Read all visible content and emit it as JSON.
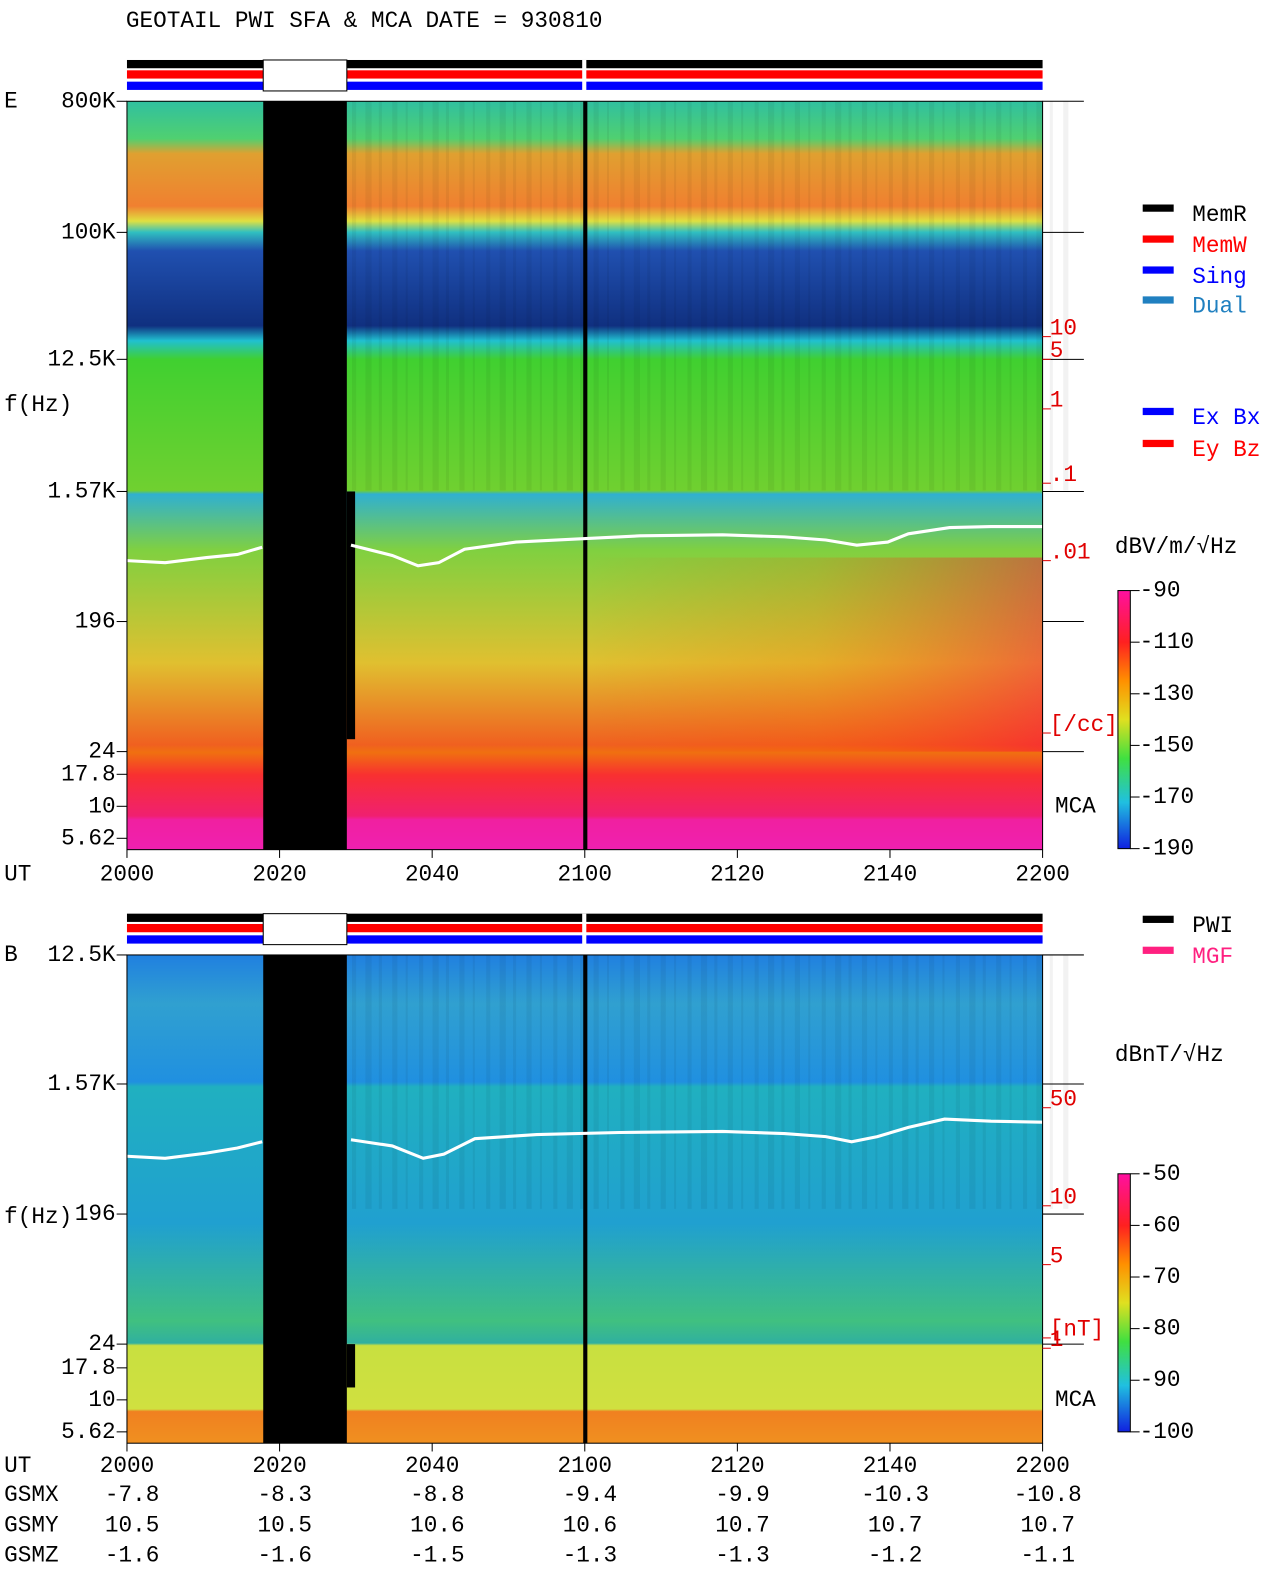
{
  "title": "GEOTAIL  PWI SFA & MCA   DATE = 930810",
  "panels": [
    {
      "name": "E",
      "y_label": "f(Hz)",
      "freq_ticks": [
        "800K",
        "100K",
        "12.5K",
        "1.57K",
        "196",
        "24",
        "17.8",
        "10",
        "5.62"
      ],
      "density_ticks": [
        "10",
        "5",
        "1",
        ".1",
        ".01",
        "[/cc]"
      ],
      "mca": "MCA",
      "colorbar_unit": "dBV/m/√Hz",
      "colorbar_ticks": [
        "-90",
        "-110",
        "-130",
        "-150",
        "-170",
        "-190"
      ],
      "time_label": "UT",
      "time_ticks": [
        "2000",
        "2020",
        "2040",
        "2100",
        "2120",
        "2140",
        "2200"
      ],
      "legends": [
        [
          "MemR",
          "MemW",
          "Sing",
          "Dual"
        ],
        [
          "Ex Bx",
          "Ey Bz"
        ]
      ]
    },
    {
      "name": "B",
      "y_label": "f(Hz)",
      "freq_ticks": [
        "12.5K",
        "1.57K",
        "196",
        "24",
        "17.8",
        "10",
        "5.62"
      ],
      "density_ticks": [
        "50",
        "10",
        "5",
        "1",
        "[nT]"
      ],
      "mca": "MCA",
      "colorbar_unit": "dBnT/√Hz",
      "colorbar_ticks": [
        "-50",
        "-60",
        "-70",
        "-80",
        "-90",
        "-100"
      ],
      "time_label": "UT",
      "time_ticks": [
        "2000",
        "2020",
        "2040",
        "2100",
        "2120",
        "2140",
        "2200"
      ],
      "legends": [
        [
          "PWI",
          "MGF"
        ]
      ]
    }
  ],
  "orbit": [
    {
      "label": "GSMX",
      "values": [
        "-7.8",
        "-8.3",
        "-8.8",
        "-9.4",
        "-9.9",
        "-10.3",
        "-10.8"
      ]
    },
    {
      "label": "GSMY",
      "values": [
        "10.5",
        "10.5",
        "10.6",
        "10.6",
        "10.7",
        "10.7",
        "10.7"
      ]
    },
    {
      "label": "GSMZ",
      "values": [
        "-1.6",
        "-1.6",
        "-1.5",
        "-1.3",
        "-1.3",
        "-1.2",
        "-1.1"
      ]
    }
  ]
}
